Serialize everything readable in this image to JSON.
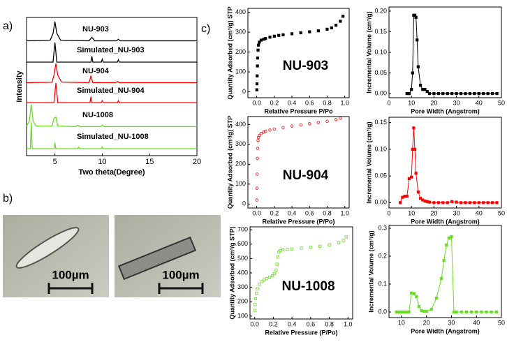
{
  "panel_labels": [
    "a)",
    "b)",
    "c)"
  ],
  "micrographs": [
    {
      "scale_bar": "100µm"
    },
    {
      "scale_bar": "100µm"
    }
  ],
  "chart_data": [
    {
      "type": "line",
      "offset_traces": true,
      "xlabel": "Two theta(Degree)",
      "ylabel": "Intensity",
      "xlim": [
        2,
        20
      ],
      "xticks": [
        5,
        10,
        15,
        20
      ],
      "series": [
        {
          "name": "NU-903",
          "color": "#000000",
          "x": [
            2,
            4.5,
            4.8,
            5.0,
            5.2,
            5.6,
            8.6,
            8.9,
            9.2,
            10,
            11.5,
            11.7,
            11.9,
            20
          ],
          "values": [
            0.02,
            0.05,
            0.4,
            1,
            0.4,
            0.05,
            0.02,
            0.2,
            0.02,
            0.02,
            0.02,
            0.1,
            0.02,
            0.02
          ]
        },
        {
          "name": "Simulated_NU-903",
          "color": "#000000",
          "x": [
            2,
            4.8,
            5.0,
            5.2,
            8.8,
            8.9,
            9.0,
            9.9,
            10.0,
            10.1,
            11.6,
            11.7,
            11.8,
            20
          ],
          "values": [
            0,
            0,
            1,
            0,
            0,
            0.3,
            0,
            0,
            0.15,
            0,
            0,
            0.12,
            0,
            0
          ]
        },
        {
          "name": "NU-904",
          "color": "#ff0000",
          "x": [
            2,
            4.7,
            4.9,
            5.1,
            5.3,
            5.7,
            8.6,
            8.8,
            9.0,
            10,
            11.4,
            11.6,
            11.8,
            20
          ],
          "values": [
            0.02,
            0.04,
            0.4,
            1,
            0.4,
            0.05,
            0.02,
            0.35,
            0.02,
            0.02,
            0.02,
            0.08,
            0.02,
            0.02
          ]
        },
        {
          "name": "Simulated_NU-904",
          "color": "#ff0000",
          "x": [
            2,
            4.9,
            5.1,
            5.3,
            8.7,
            8.8,
            8.9,
            9.9,
            10.0,
            10.1,
            11.6,
            11.7,
            11.8,
            20
          ],
          "values": [
            0,
            0,
            1,
            0,
            0,
            0.3,
            0,
            0,
            0.1,
            0,
            0,
            0.1,
            0,
            0
          ]
        },
        {
          "name": "NU-1008",
          "color": "#66dd22",
          "x": [
            2,
            2.3,
            2.5,
            2.7,
            3.0,
            4.7,
            4.9,
            5.1,
            5.3,
            7.2,
            7.4,
            7.6,
            9.8,
            10,
            10.2,
            20
          ],
          "values": [
            0.05,
            0.3,
            1.15,
            0.3,
            0.05,
            0.05,
            0.45,
            0.5,
            0.05,
            0.02,
            0.1,
            0.02,
            0.02,
            0.1,
            0.02,
            0.02
          ]
        },
        {
          "name": "Simulated_NU-1008",
          "color": "#66dd22",
          "x": [
            2,
            2.4,
            2.5,
            2.6,
            4.9,
            5.0,
            5.1,
            7.4,
            7.5,
            7.6,
            9.9,
            10.0,
            10.1,
            20
          ],
          "values": [
            0,
            0,
            1.35,
            0,
            0,
            0.3,
            0,
            0,
            0.08,
            0,
            0,
            0.08,
            0,
            0
          ]
        }
      ]
    },
    {
      "type": "scatter",
      "marker": "square",
      "filled": true,
      "color": "#000000",
      "annotation": "NU-903",
      "xlabel": "Relative Pressure P/Po",
      "ylabel": "Quantity Adsorbed (cm³/g) STP",
      "xlim": [
        -0.1,
        1.05
      ],
      "ylim": [
        -30,
        420
      ],
      "xticks": [
        {
          "value": 0,
          "label": "0.0"
        },
        0.2,
        0.4,
        0.6,
        0.8,
        {
          "value": 1,
          "label": "1.0"
        }
      ],
      "yticks": [
        0,
        100,
        200,
        300,
        400
      ],
      "x": [
        0.001,
        0.003,
        0.005,
        0.008,
        0.01,
        0.015,
        0.02,
        0.03,
        0.05,
        0.08,
        0.1,
        0.15,
        0.2,
        0.25,
        0.3,
        0.4,
        0.5,
        0.6,
        0.7,
        0.8,
        0.85,
        0.9,
        0.95,
        0.98
      ],
      "values": [
        10,
        40,
        80,
        130,
        170,
        210,
        235,
        250,
        260,
        265,
        268,
        275,
        280,
        284,
        287,
        292,
        297,
        302,
        307,
        315,
        322,
        335,
        355,
        380
      ]
    },
    {
      "type": "line",
      "marker": "square",
      "filled": true,
      "color": "#000000",
      "xlabel": "Pore Width (Angstrom)",
      "ylabel": "Incremental Volume (cm³/g)",
      "xlim": [
        0,
        50
      ],
      "ylim": [
        -0.01,
        0.21
      ],
      "xticks": [
        0,
        10,
        20,
        30,
        40,
        50
      ],
      "yticks": [
        {
          "value": 0,
          "label": "0.00"
        },
        0.05,
        {
          "value": 0.1,
          "label": "0.10"
        },
        0.15,
        {
          "value": 0.2,
          "label": "0.20"
        }
      ],
      "x": [
        8,
        9,
        10,
        10.5,
        11,
        11.5,
        12,
        12.5,
        13,
        14,
        15,
        16,
        17,
        18,
        20,
        22,
        24,
        26,
        28,
        30,
        32,
        34,
        36,
        38,
        40,
        42,
        44,
        46,
        48
      ],
      "values": [
        0,
        0,
        0.01,
        0.05,
        0.19,
        0.19,
        0.185,
        0.13,
        0.065,
        0.02,
        0.01,
        0.01,
        0.005,
        0,
        0,
        0,
        0,
        0,
        0,
        0,
        0,
        0,
        0,
        0,
        0,
        0,
        0,
        0,
        0
      ]
    },
    {
      "type": "scatter",
      "marker": "circle",
      "filled": false,
      "color": "#ff0000",
      "annotation": "NU-904",
      "xlabel": "Relative Pressure (P/Po)",
      "ylabel": "Quantity Adsorbed (cm³/g) STP",
      "xlim": [
        -0.1,
        1.05
      ],
      "ylim": [
        -20,
        440
      ],
      "xticks": [
        {
          "value": 0,
          "label": "0.0"
        },
        0.2,
        0.4,
        0.6,
        0.8,
        {
          "value": 1,
          "label": "1.0"
        }
      ],
      "yticks": [
        0,
        100,
        200,
        300,
        400
      ],
      "x": [
        0.001,
        0.003,
        0.005,
        0.008,
        0.01,
        0.015,
        0.02,
        0.03,
        0.05,
        0.08,
        0.1,
        0.15,
        0.2,
        0.3,
        0.4,
        0.5,
        0.6,
        0.7,
        0.8,
        0.9,
        0.95
      ],
      "values": [
        20,
        80,
        150,
        230,
        280,
        320,
        335,
        345,
        355,
        362,
        366,
        372,
        377,
        385,
        392,
        398,
        404,
        410,
        416,
        425,
        432
      ]
    },
    {
      "type": "line",
      "marker": "square",
      "filled": true,
      "color": "#ff0000",
      "xlabel": "Pore Width (Angstrom)",
      "ylabel": "Incremental Volume (cm³/g)",
      "xlim": [
        0,
        50
      ],
      "ylim": [
        -0.01,
        0.16
      ],
      "xticks": [
        0,
        10,
        20,
        30,
        40,
        50
      ],
      "yticks": [
        {
          "value": 0,
          "label": "0.00"
        },
        0.05,
        {
          "value": 0.1,
          "label": "0.10"
        },
        0.15
      ],
      "x": [
        5,
        6,
        7,
        8,
        9,
        10,
        10.5,
        11,
        11.5,
        12,
        13,
        14,
        15,
        16,
        17,
        18,
        20,
        22,
        24,
        26,
        28,
        30,
        32,
        34,
        36,
        38,
        40,
        42,
        44,
        46,
        48
      ],
      "values": [
        0,
        0.01,
        0.012,
        0.012,
        0.045,
        0.048,
        0.1,
        0.14,
        0.1,
        0.055,
        0.02,
        0.008,
        0.005,
        0.003,
        0.002,
        0.001,
        0,
        0,
        0,
        0,
        0.002,
        0.001,
        0,
        0,
        0,
        0,
        0,
        0,
        0,
        0,
        0
      ]
    },
    {
      "type": "scatter",
      "marker": "square",
      "filled": false,
      "color": "#66dd22",
      "annotation": "NU-1008",
      "xlabel": "Relative Pressure (P/Po)",
      "ylabel": "Quantity Adsorbed (cm³/g STP)",
      "xlim": [
        -0.05,
        1.05
      ],
      "ylim": [
        80,
        720
      ],
      "xticks": [
        {
          "value": 0,
          "label": "0.0"
        },
        0.2,
        0.4,
        0.6,
        0.8,
        {
          "value": 1,
          "label": "1.0"
        }
      ],
      "yticks": [
        100,
        200,
        300,
        400,
        500,
        600,
        700
      ],
      "x": [
        0.002,
        0.005,
        0.01,
        0.02,
        0.03,
        0.05,
        0.08,
        0.1,
        0.13,
        0.16,
        0.19,
        0.21,
        0.23,
        0.24,
        0.25,
        0.26,
        0.27,
        0.3,
        0.35,
        0.4,
        0.5,
        0.6,
        0.7,
        0.8,
        0.9,
        0.95,
        0.98
      ],
      "values": [
        140,
        180,
        220,
        260,
        290,
        320,
        340,
        350,
        360,
        370,
        380,
        395,
        420,
        460,
        510,
        545,
        555,
        560,
        563,
        566,
        572,
        578,
        585,
        595,
        610,
        625,
        650
      ]
    },
    {
      "type": "line",
      "marker": "square",
      "filled": true,
      "color": "#66dd22",
      "xlabel": "Pore Width (Angstrom)",
      "ylabel": "Incremental Volume (cm³/g)",
      "xlim": [
        5,
        50
      ],
      "ylim": [
        -0.02,
        0.31
      ],
      "xticks": [
        10,
        20,
        30,
        40,
        50
      ],
      "yticks": [
        {
          "value": 0,
          "label": "0.0"
        },
        0.1,
        0.2,
        0.3
      ],
      "x": [
        8,
        9,
        10,
        11,
        12,
        13,
        14,
        15,
        16,
        17,
        18,
        19,
        20,
        22,
        24,
        26,
        27,
        28,
        29,
        30,
        31,
        32,
        34,
        36,
        38,
        40,
        42,
        44,
        46,
        48
      ],
      "values": [
        0,
        0,
        0,
        0,
        0,
        0,
        0.068,
        0.066,
        0.055,
        0.02,
        0.005,
        0.002,
        0.002,
        0.01,
        0.05,
        0.12,
        0.185,
        0.24,
        0.265,
        0.27,
        0,
        0,
        0,
        0,
        0,
        0,
        0,
        0,
        0,
        0
      ]
    }
  ]
}
